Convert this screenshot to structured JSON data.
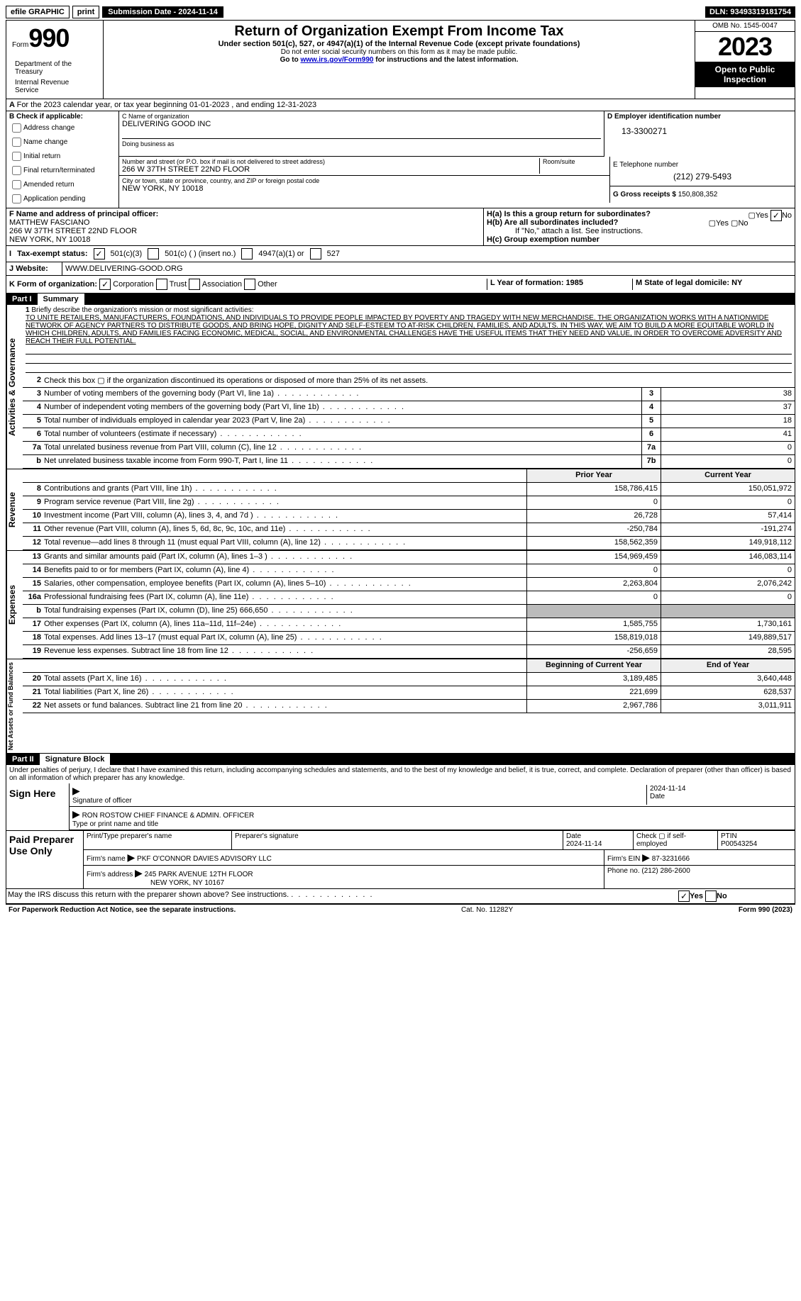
{
  "top": {
    "efile": "efile GRAPHIC",
    "print": "print",
    "sub_label": "Submission Date - 2024-11-14",
    "dln": "DLN: 93493319181754"
  },
  "header": {
    "form": "Form",
    "num": "990",
    "title": "Return of Organization Exempt From Income Tax",
    "sub": "Under section 501(c), 527, or 4947(a)(1) of the Internal Revenue Code (except private foundations)",
    "ssn": "Do not enter social security numbers on this form as it may be made public.",
    "goto": "Go to ",
    "link": "www.irs.gov/Form990",
    "goto2": " for instructions and the latest information.",
    "dept": "Department of the Treasury",
    "irs": "Internal Revenue Service",
    "omb": "OMB No. 1545-0047",
    "year": "2023",
    "open": "Open to Public Inspection"
  },
  "rowA": "For the 2023 calendar year, or tax year beginning 01-01-2023   , and ending 12-31-2023",
  "b": {
    "hdr": "B Check if applicable:",
    "opts": [
      "Address change",
      "Name change",
      "Initial return",
      "Final return/terminated",
      "Amended return",
      "Application pending"
    ]
  },
  "c": {
    "name_lbl": "C Name of organization",
    "name": "DELIVERING GOOD INC",
    "dba_lbl": "Doing business as",
    "addr_lbl": "Number and street (or P.O. box if mail is not delivered to street address)",
    "room_lbl": "Room/suite",
    "addr": "266 W 37TH STREET 22ND FLOOR",
    "city_lbl": "City or town, state or province, country, and ZIP or foreign postal code",
    "city": "NEW YORK, NY  10018"
  },
  "d": {
    "ein_lbl": "D Employer identification number",
    "ein": "13-3300271",
    "tel_lbl": "E Telephone number",
    "tel": "(212) 279-5493",
    "gross_lbl": "G Gross receipts $",
    "gross": "150,808,352"
  },
  "f": {
    "lbl": "F  Name and address of principal officer:",
    "name": "MATTHEW FASCIANO",
    "addr1": "266 W 37TH STREET 22ND FLOOR",
    "addr2": "NEW YORK, NY  10018"
  },
  "h": {
    "a": "H(a)  Is this a group return for subordinates?",
    "b": "H(b)  Are all subordinates included?",
    "note": "If \"No,\" attach a list. See instructions.",
    "c": "H(c)  Group exemption number ",
    "yes": "Yes",
    "no": "No"
  },
  "i": {
    "lbl": "Tax-exempt status:",
    "o1": "501(c)(3)",
    "o2": "501(c) (  ) (insert no.)",
    "o3": "4947(a)(1) or",
    "o4": "527"
  },
  "j": {
    "lbl": "Website: ",
    "url": "WWW.DELIVERING-GOOD.ORG"
  },
  "k": {
    "lbl": "K Form of organization:",
    "corp": "Corporation",
    "trust": "Trust",
    "assoc": "Association",
    "other": "Other",
    "l": "L Year of formation: 1985",
    "m": "M State of legal domicile: NY"
  },
  "part1": {
    "pn": "Part I",
    "pt": "Summary"
  },
  "mission": {
    "lbl": "Briefly describe the organization's mission or most significant activities:",
    "text": "TO UNITE RETAILERS, MANUFACTURERS, FOUNDATIONS, AND INDIVIDUALS TO PROVIDE PEOPLE IMPACTED BY POVERTY AND TRAGEDY WITH NEW MERCHANDISE. THE ORGANIZATION WORKS WITH A NATIONWIDE NETWORK OF AGENCY PARTNERS TO DISTRIBUTE GOODS, AND BRING HOPE, DIGNITY AND SELF-ESTEEM TO AT-RISK CHILDREN, FAMILIES, AND ADULTS. IN THIS WAY, WE AIM TO BUILD A MORE EQUITABLE WORLD IN WHICH CHILDREN, ADULTS, AND FAMILIES FACING ECONOMIC, MEDICAL, SOCIAL, AND ENVIRONMENTAL CHALLENGES HAVE THE USEFUL ITEMS THAT THEY NEED AND VALUE, IN ORDER TO OVERCOME ADVERSITY AND REACH THEIR FULL POTENTIAL."
  },
  "gov_lines": [
    {
      "n": "2",
      "t": "Check this box ▢ if the organization discontinued its operations or disposed of more than 25% of its net assets.",
      "box": "",
      "v": ""
    },
    {
      "n": "3",
      "t": "Number of voting members of the governing body (Part VI, line 1a)",
      "box": "3",
      "v": "38"
    },
    {
      "n": "4",
      "t": "Number of independent voting members of the governing body (Part VI, line 1b)",
      "box": "4",
      "v": "37"
    },
    {
      "n": "5",
      "t": "Total number of individuals employed in calendar year 2023 (Part V, line 2a)",
      "box": "5",
      "v": "18"
    },
    {
      "n": "6",
      "t": "Total number of volunteers (estimate if necessary)",
      "box": "6",
      "v": "41"
    },
    {
      "n": "7a",
      "t": "Total unrelated business revenue from Part VIII, column (C), line 12",
      "box": "7a",
      "v": "0"
    },
    {
      "n": "b",
      "t": "Net unrelated business taxable income from Form 990-T, Part I, line 11",
      "box": "7b",
      "v": "0"
    }
  ],
  "rev_hdr": {
    "py": "Prior Year",
    "cy": "Current Year"
  },
  "rev_lines": [
    {
      "n": "8",
      "t": "Contributions and grants (Part VIII, line 1h)",
      "py": "158,786,415",
      "cy": "150,051,972"
    },
    {
      "n": "9",
      "t": "Program service revenue (Part VIII, line 2g)",
      "py": "0",
      "cy": "0"
    },
    {
      "n": "10",
      "t": "Investment income (Part VIII, column (A), lines 3, 4, and 7d )",
      "py": "26,728",
      "cy": "57,414"
    },
    {
      "n": "11",
      "t": "Other revenue (Part VIII, column (A), lines 5, 6d, 8c, 9c, 10c, and 11e)",
      "py": "-250,784",
      "cy": "-191,274"
    },
    {
      "n": "12",
      "t": "Total revenue—add lines 8 through 11 (must equal Part VIII, column (A), line 12)",
      "py": "158,562,359",
      "cy": "149,918,112"
    }
  ],
  "exp_lines": [
    {
      "n": "13",
      "t": "Grants and similar amounts paid (Part IX, column (A), lines 1–3 )",
      "py": "154,969,459",
      "cy": "146,083,114"
    },
    {
      "n": "14",
      "t": "Benefits paid to or for members (Part IX, column (A), line 4)",
      "py": "0",
      "cy": "0"
    },
    {
      "n": "15",
      "t": "Salaries, other compensation, employee benefits (Part IX, column (A), lines 5–10)",
      "py": "2,263,804",
      "cy": "2,076,242"
    },
    {
      "n": "16a",
      "t": "Professional fundraising fees (Part IX, column (A), line 11e)",
      "py": "0",
      "cy": "0"
    },
    {
      "n": "b",
      "t": "Total fundraising expenses (Part IX, column (D), line 25) 666,650",
      "py": "",
      "cy": "",
      "grey": true
    },
    {
      "n": "17",
      "t": "Other expenses (Part IX, column (A), lines 11a–11d, 11f–24e)",
      "py": "1,585,755",
      "cy": "1,730,161"
    },
    {
      "n": "18",
      "t": "Total expenses. Add lines 13–17 (must equal Part IX, column (A), line 25)",
      "py": "158,819,018",
      "cy": "149,889,517"
    },
    {
      "n": "19",
      "t": "Revenue less expenses. Subtract line 18 from line 12",
      "py": "-256,659",
      "cy": "28,595"
    }
  ],
  "na_hdr": {
    "b": "Beginning of Current Year",
    "e": "End of Year"
  },
  "na_lines": [
    {
      "n": "20",
      "t": "Total assets (Part X, line 16)",
      "b": "3,189,485",
      "e": "3,640,448"
    },
    {
      "n": "21",
      "t": "Total liabilities (Part X, line 26)",
      "b": "221,699",
      "e": "628,537"
    },
    {
      "n": "22",
      "t": "Net assets or fund balances. Subtract line 21 from line 20",
      "b": "2,967,786",
      "e": "3,011,911"
    }
  ],
  "side_labels": {
    "ag": "Activities & Governance",
    "rev": "Revenue",
    "exp": "Expenses",
    "na": "Net Assets or Fund Balances"
  },
  "part2": {
    "pn": "Part II",
    "pt": "Signature Block"
  },
  "sig": {
    "decl": "Under penalties of perjury, I declare that I have examined this return, including accompanying schedules and statements, and to the best of my knowledge and belief, it is true, correct, and complete. Declaration of preparer (other than officer) is based on all information of which preparer has any knowledge.",
    "sign_here": "Sign Here",
    "sig_of": "Signature of officer",
    "date": "Date",
    "date_v": "2024-11-14",
    "officer": "RON ROSTOW CHIEF FINANCE & ADMIN. OFFICER",
    "type_lbl": "Type or print name and title"
  },
  "paid": {
    "hdr": "Paid Preparer Use Only",
    "name_lbl": "Print/Type preparer's name",
    "sig_lbl": "Preparer's signature",
    "date_lbl": "Date",
    "date_v": "2024-11-14",
    "chk_lbl": "Check ▢ if self-employed",
    "ptin_lbl": "PTIN",
    "ptin": "P00543254",
    "firm_lbl": "Firm's name ",
    "firm": "PKF O'CONNOR DAVIES ADVISORY LLC",
    "ein_lbl": "Firm's EIN ",
    "ein": "87-3231666",
    "addr_lbl": "Firm's address ",
    "addr": "245 PARK AVENUE 12TH FLOOR",
    "addr2": "NEW YORK, NY  10167",
    "ph_lbl": "Phone no. ",
    "ph": "(212) 286-2600"
  },
  "discuss": "May the IRS discuss this return with the preparer shown above? See instructions.",
  "footer": {
    "pra": "For Paperwork Reduction Act Notice, see the separate instructions.",
    "cat": "Cat. No. 11282Y",
    "form": "Form 990 (2023)"
  }
}
